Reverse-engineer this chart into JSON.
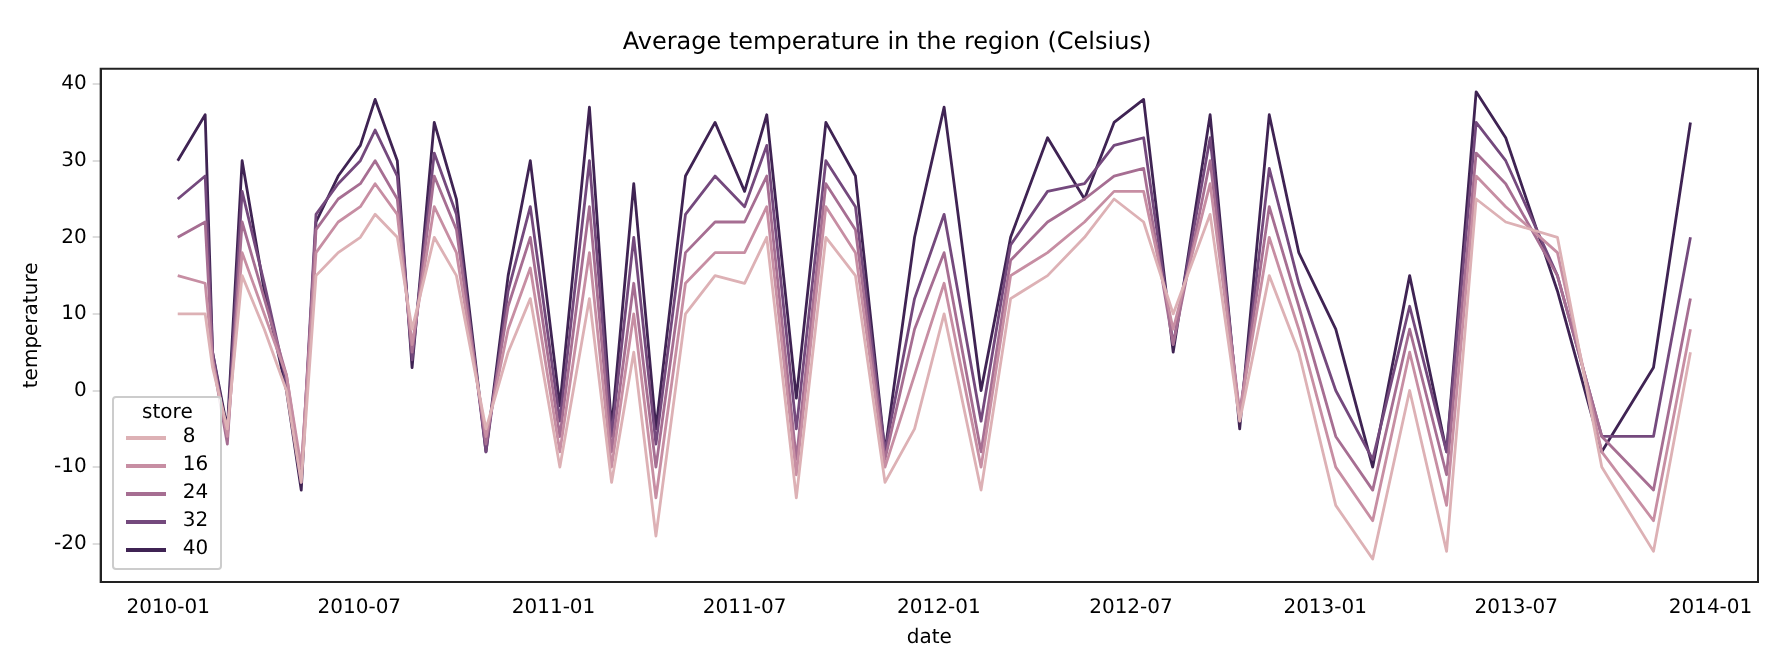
{
  "chart_data": {
    "type": "line",
    "title": "Average temperature in the region (Celsius)",
    "xlabel": "date",
    "ylabel": "temperature",
    "legend_title": "store",
    "legend": "bottom left",
    "grid": false,
    "marker": "none",
    "line_style": "solid",
    "x": [
      "2010-01-10",
      "2010-02-05",
      "2010-02-12",
      "2010-02-26",
      "2010-03-12",
      "2010-04-02",
      "2010-04-23",
      "2010-05-07",
      "2010-05-21",
      "2010-06-11",
      "2010-07-02",
      "2010-07-16",
      "2010-08-06",
      "2010-08-20",
      "2010-09-10",
      "2010-10-01",
      "2010-10-29",
      "2010-11-19",
      "2010-12-10",
      "2011-01-07",
      "2011-02-04",
      "2011-02-25",
      "2011-03-18",
      "2011-04-08",
      "2011-05-06",
      "2011-06-03",
      "2011-07-01",
      "2011-07-22",
      "2011-08-19",
      "2011-09-16",
      "2011-10-14",
      "2011-11-11",
      "2011-12-09",
      "2012-01-06",
      "2012-02-10",
      "2012-03-09",
      "2012-04-13",
      "2012-05-18",
      "2012-06-15",
      "2012-07-13",
      "2012-08-10",
      "2012-09-14",
      "2012-10-12",
      "2012-11-09",
      "2012-12-07",
      "2013-01-11",
      "2013-02-15",
      "2013-03-22",
      "2013-04-26",
      "2013-05-24",
      "2013-06-21",
      "2013-08-09",
      "2013-09-20",
      "2013-11-08",
      "2013-12-13"
    ],
    "xlim": [
      "2009-10-29",
      "2014-02-15"
    ],
    "xticks": [
      "2010-01",
      "2010-07",
      "2011-01",
      "2011-07",
      "2012-01",
      "2012-07",
      "2013-01",
      "2013-07",
      "2014-01"
    ],
    "ylim": [
      -25,
      42
    ],
    "yticks": [
      -20,
      -10,
      0,
      10,
      20,
      30,
      40
    ],
    "series": [
      {
        "name": "8",
        "color": "#ddb1b5",
        "values": [
          10,
          10,
          3,
          -5,
          15,
          8,
          0,
          -12,
          15,
          18,
          20,
          23,
          20,
          8,
          20,
          15,
          -5,
          5,
          12,
          -10,
          12,
          -12,
          5,
          -19,
          10,
          15,
          14,
          20,
          -14,
          20,
          15,
          -12,
          -5,
          10,
          -13,
          12,
          15,
          20,
          25,
          22,
          10,
          23,
          -4,
          15,
          5,
          -15,
          -22,
          0,
          -21,
          25,
          22,
          20,
          -10,
          -21,
          5
        ]
      },
      {
        "name": "16",
        "color": "#c78ea3",
        "values": [
          15,
          14,
          4,
          -6,
          18,
          10,
          2,
          -10,
          18,
          22,
          24,
          27,
          23,
          6,
          24,
          18,
          -6,
          8,
          16,
          -8,
          18,
          -10,
          10,
          -14,
          14,
          18,
          18,
          24,
          -11,
          24,
          18,
          -10,
          2,
          14,
          -10,
          15,
          18,
          22,
          26,
          26,
          8,
          27,
          -3,
          20,
          8,
          -10,
          -17,
          5,
          -15,
          28,
          24,
          18,
          -8,
          -17,
          8
        ]
      },
      {
        "name": "24",
        "color": "#a66e92",
        "values": [
          20,
          22,
          4,
          -7,
          22,
          12,
          2,
          -11,
          21,
          25,
          27,
          30,
          25,
          5,
          28,
          21,
          -7,
          11,
          20,
          -6,
          24,
          -8,
          14,
          -10,
          18,
          22,
          22,
          28,
          -9,
          27,
          21,
          -9,
          8,
          18,
          -8,
          17,
          22,
          25,
          28,
          29,
          6,
          30,
          -3,
          24,
          11,
          -6,
          -13,
          8,
          -11,
          31,
          27,
          15,
          -6,
          -13,
          12
        ]
      },
      {
        "name": "32",
        "color": "#74497d",
        "values": [
          25,
          28,
          5,
          -6,
          26,
          14,
          1,
          -12,
          23,
          27,
          30,
          34,
          28,
          4,
          31,
          23,
          -8,
          13,
          24,
          -4,
          30,
          -6,
          20,
          -7,
          23,
          28,
          24,
          32,
          -5,
          30,
          24,
          -8,
          12,
          23,
          -4,
          19,
          26,
          27,
          32,
          33,
          6,
          33,
          -4,
          29,
          14,
          0,
          -9,
          11,
          -8,
          35,
          30,
          15,
          -6,
          -6,
          20
        ]
      },
      {
        "name": "40",
        "color": "#3f2353",
        "values": [
          30,
          36,
          5,
          -5,
          30,
          13,
          0,
          -13,
          22,
          28,
          32,
          38,
          30,
          3,
          35,
          25,
          -8,
          15,
          30,
          -2,
          37,
          -5,
          27,
          -5,
          28,
          35,
          26,
          36,
          -1,
          35,
          28,
          -8,
          20,
          37,
          0,
          20,
          33,
          25,
          35,
          38,
          5,
          36,
          -5,
          36,
          18,
          8,
          -10,
          15,
          -8,
          39,
          33,
          13,
          -8,
          3,
          35
        ]
      }
    ]
  }
}
